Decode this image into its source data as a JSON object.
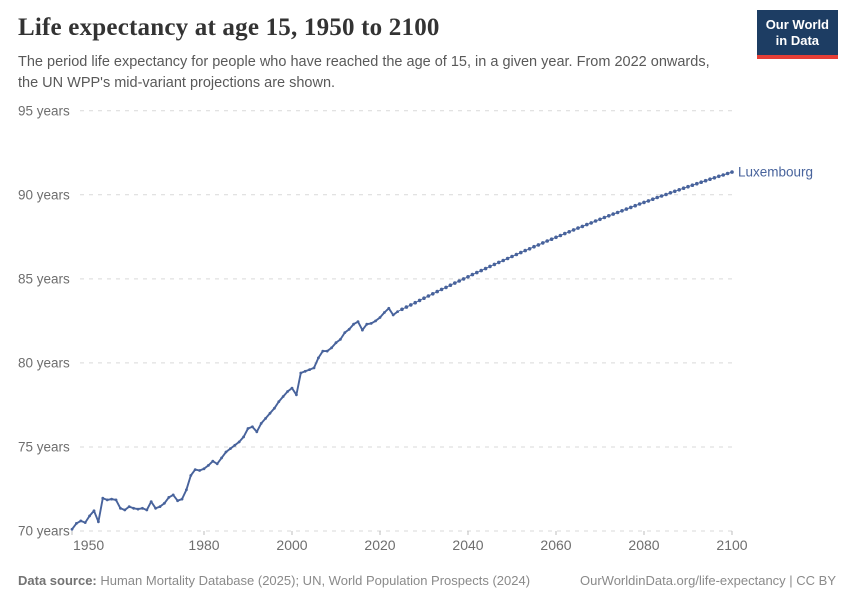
{
  "header": {
    "title": "Life expectancy at age 15, 1950 to 2100",
    "subtitle": "The period life expectancy for people who have reached the age of 15, in a given year. From 2022 onwards, the UN WPP's mid-variant projections are shown.",
    "logo": {
      "line1": "Our World",
      "line2": "in Data",
      "bg_color": "#1d3d63",
      "accent_color": "#e63e36"
    }
  },
  "footer": {
    "source_label": "Data source:",
    "source_text": " Human Mortality Database (2025); UN, World Population Prospects (2024)",
    "link_text": "OurWorldinData.org/life-expectancy | CC BY"
  },
  "chart_data": {
    "type": "line",
    "title": "Life expectancy at age 15, 1950 to 2100",
    "entity_label": "Luxembourg",
    "line_color": "#48639c",
    "grid": "horizontal-dashed",
    "grid_color": "#d9d9d9",
    "axis_text_color": "#6e6e6e",
    "x_range": [
      1950,
      2100
    ],
    "y_range": [
      70,
      95
    ],
    "x_ticks": [
      1950,
      1980,
      2000,
      2020,
      2040,
      2060,
      2080,
      2100
    ],
    "y_ticks": [
      {
        "value": 70,
        "label": "70 years"
      },
      {
        "value": 75,
        "label": "75 years"
      },
      {
        "value": 80,
        "label": "80 years"
      },
      {
        "value": 85,
        "label": "85 years"
      },
      {
        "value": 90,
        "label": "90 years"
      },
      {
        "value": 95,
        "label": "95 years"
      }
    ],
    "start_year": 1950,
    "projection_start_year": 2024,
    "series": [
      {
        "name": "Luxembourg",
        "values": [
          70.1,
          70.45,
          70.6,
          70.5,
          70.9,
          71.2,
          70.55,
          71.95,
          71.85,
          71.9,
          71.85,
          71.35,
          71.25,
          71.45,
          71.35,
          71.3,
          71.35,
          71.25,
          71.75,
          71.35,
          71.45,
          71.65,
          72.0,
          72.15,
          71.8,
          71.9,
          72.45,
          73.3,
          73.65,
          73.6,
          73.7,
          73.9,
          74.15,
          74.0,
          74.35,
          74.7,
          74.9,
          75.1,
          75.3,
          75.6,
          76.1,
          76.2,
          75.9,
          76.4,
          76.7,
          77.0,
          77.3,
          77.7,
          78.0,
          78.3,
          78.5,
          78.1,
          79.4,
          79.5,
          79.6,
          79.7,
          80.3,
          80.7,
          80.7,
          80.9,
          81.2,
          81.4,
          81.8,
          82.0,
          82.3,
          82.45,
          81.95,
          82.3,
          82.35,
          82.5,
          82.7,
          83.0,
          83.25,
          82.85,
          83.05,
          83.19,
          83.32,
          83.45,
          83.58,
          83.72,
          83.85,
          83.98,
          84.11,
          84.24,
          84.37,
          84.49,
          84.62,
          84.75,
          84.87,
          85.0,
          85.12,
          85.25,
          85.37,
          85.49,
          85.61,
          85.74,
          85.86,
          85.98,
          86.09,
          86.21,
          86.33,
          86.45,
          86.56,
          86.68,
          86.79,
          86.91,
          87.02,
          87.14,
          87.25,
          87.36,
          87.47,
          87.58,
          87.69,
          87.8,
          87.91,
          88.02,
          88.12,
          88.23,
          88.33,
          88.44,
          88.54,
          88.65,
          88.75,
          88.85,
          88.95,
          89.05,
          89.15,
          89.25,
          89.35,
          89.45,
          89.55,
          89.64,
          89.74,
          89.84,
          89.93,
          90.02,
          90.12,
          90.21,
          90.3,
          90.39,
          90.48,
          90.57,
          90.66,
          90.75,
          90.84,
          90.93,
          91.01,
          91.1,
          91.18,
          91.27,
          91.35
        ]
      }
    ]
  }
}
